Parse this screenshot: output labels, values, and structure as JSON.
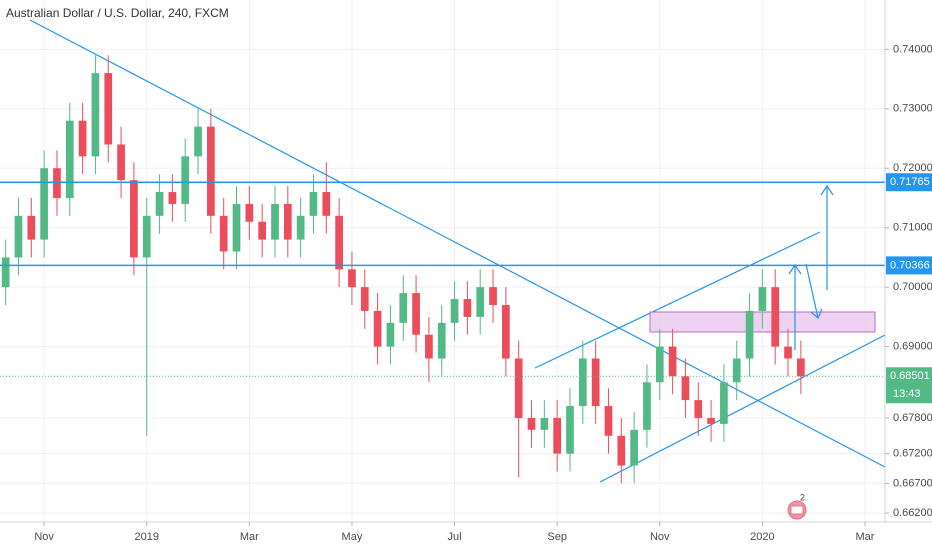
{
  "chart_data": {
    "type": "candlestick",
    "title": "Australian Dollar / U.S. Dollar, 240, FXCM",
    "x": [
      -0.75,
      -0.5,
      -0.25,
      0,
      0.25,
      0.5,
      0.75,
      1,
      1.25,
      1.5,
      1.75,
      2,
      2.25,
      2.5,
      2.75,
      3,
      3.25,
      3.5,
      3.75,
      4,
      4.25,
      4.5,
      4.75,
      5,
      5.25,
      5.5,
      5.75,
      6,
      6.25,
      6.5,
      6.75,
      7,
      7.25,
      7.5,
      7.75,
      8,
      8.25,
      8.5,
      8.75,
      9,
      9.25,
      9.5,
      9.75,
      10,
      10.25,
      10.5,
      10.75,
      11,
      11.25,
      11.5,
      11.75,
      12,
      12.25,
      12.5,
      12.75,
      13,
      13.25,
      13.5,
      13.75,
      14,
      14.25,
      14.5,
      14.75
    ],
    "series": [
      {
        "up_color": "#53b987",
        "down_color": "#eb4d5c",
        "open": [
          0.7,
          0.705,
          0.712,
          0.708,
          0.72,
          0.715,
          0.728,
          0.722,
          0.736,
          0.724,
          0.718,
          0.705,
          0.712,
          0.716,
          0.714,
          0.722,
          0.727,
          0.712,
          0.706,
          0.714,
          0.711,
          0.708,
          0.714,
          0.708,
          0.712,
          0.716,
          0.712,
          0.703,
          0.7,
          0.696,
          0.69,
          0.694,
          0.699,
          0.692,
          0.688,
          0.694,
          0.698,
          0.695,
          0.7,
          0.697,
          0.688,
          0.678,
          0.676,
          0.678,
          0.672,
          0.68,
          0.688,
          0.68,
          0.675,
          0.67,
          0.676,
          0.684,
          0.69,
          0.685,
          0.681,
          0.678,
          0.677,
          0.684,
          0.688,
          0.696,
          0.7,
          0.69,
          0.688
        ],
        "high": [
          0.708,
          0.715,
          0.715,
          0.723,
          0.723,
          0.731,
          0.731,
          0.739,
          0.739,
          0.727,
          0.721,
          0.715,
          0.719,
          0.719,
          0.725,
          0.73,
          0.73,
          0.715,
          0.717,
          0.717,
          0.714,
          0.717,
          0.717,
          0.715,
          0.719,
          0.721,
          0.715,
          0.706,
          0.703,
          0.699,
          0.697,
          0.702,
          0.702,
          0.695,
          0.697,
          0.701,
          0.701,
          0.703,
          0.703,
          0.7,
          0.691,
          0.681,
          0.681,
          0.681,
          0.683,
          0.691,
          0.691,
          0.683,
          0.678,
          0.679,
          0.687,
          0.693,
          0.693,
          0.688,
          0.684,
          0.681,
          0.687,
          0.691,
          0.699,
          0.703,
          0.703,
          0.693,
          0.691
        ],
        "low": [
          0.697,
          0.702,
          0.705,
          0.705,
          0.712,
          0.712,
          0.719,
          0.719,
          0.721,
          0.715,
          0.702,
          0.675,
          0.709,
          0.711,
          0.711,
          0.719,
          0.709,
          0.703,
          0.703,
          0.708,
          0.705,
          0.705,
          0.705,
          0.705,
          0.709,
          0.709,
          0.7,
          0.697,
          0.693,
          0.687,
          0.687,
          0.691,
          0.689,
          0.684,
          0.685,
          0.691,
          0.692,
          0.692,
          0.694,
          0.685,
          0.668,
          0.673,
          0.673,
          0.669,
          0.669,
          0.677,
          0.677,
          0.672,
          0.667,
          0.667,
          0.673,
          0.681,
          0.682,
          0.678,
          0.675,
          0.674,
          0.674,
          0.681,
          0.685,
          0.693,
          0.687,
          0.685,
          0.682
        ],
        "close": [
          0.705,
          0.712,
          0.708,
          0.72,
          0.715,
          0.728,
          0.722,
          0.736,
          0.724,
          0.718,
          0.705,
          0.712,
          0.716,
          0.714,
          0.722,
          0.727,
          0.712,
          0.706,
          0.714,
          0.711,
          0.708,
          0.714,
          0.708,
          0.712,
          0.716,
          0.712,
          0.703,
          0.7,
          0.696,
          0.69,
          0.694,
          0.699,
          0.692,
          0.688,
          0.694,
          0.698,
          0.695,
          0.7,
          0.697,
          0.688,
          0.678,
          0.676,
          0.678,
          0.672,
          0.68,
          0.688,
          0.68,
          0.675,
          0.67,
          0.676,
          0.684,
          0.69,
          0.685,
          0.681,
          0.678,
          0.677,
          0.684,
          0.688,
          0.696,
          0.7,
          0.69,
          0.688,
          0.685
        ]
      }
    ],
    "xlim": [
      -0.86,
      16.39
    ],
    "xticks": [
      {
        "value": 0,
        "label": "Nov"
      },
      {
        "value": 2,
        "label": "2019"
      },
      {
        "value": 4,
        "label": "Mar"
      },
      {
        "value": 6,
        "label": "May"
      },
      {
        "value": 8,
        "label": "Jul"
      },
      {
        "value": 10,
        "label": "Sep"
      },
      {
        "value": 12,
        "label": "Nov"
      },
      {
        "value": 14,
        "label": "2020"
      },
      {
        "value": 16,
        "label": "Mar"
      }
    ],
    "ylim": [
      0.6605,
      0.7483
    ],
    "yticks": [
      {
        "value": 0.74,
        "label": "0.74000"
      },
      {
        "value": 0.73,
        "label": "0.73000"
      },
      {
        "value": 0.72,
        "label": "0.72000"
      },
      {
        "value": 0.71,
        "label": "0.71000"
      },
      {
        "value": 0.7,
        "label": "0.70000"
      },
      {
        "value": 0.69,
        "label": "0.69000"
      },
      {
        "value": 0.678,
        "label": "0.67800"
      },
      {
        "value": 0.672,
        "label": "0.67200"
      },
      {
        "value": 0.667,
        "label": "0.66700"
      },
      {
        "value": 0.662,
        "label": "0.66200"
      }
    ],
    "grid": true,
    "levels": [
      {
        "value": 0.71765,
        "color": "#2196f3"
      },
      {
        "value": 0.70366,
        "color": "#2196f3"
      }
    ],
    "last_price": {
      "value": 0.68501,
      "color": "#53b987",
      "countdown": "13:43"
    },
    "badge": "2"
  }
}
